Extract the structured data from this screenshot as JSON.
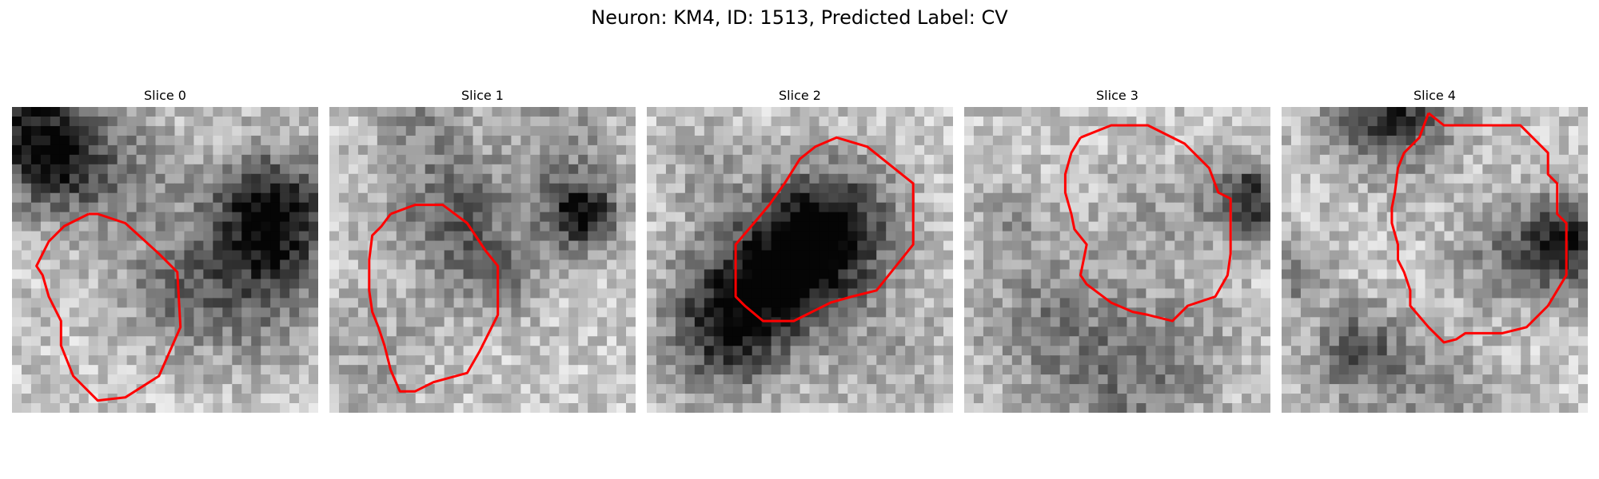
{
  "figure": {
    "title": "Neuron: KM4, ID: 1513, Predicted Label: CV"
  },
  "colors": {
    "contour": "#ff0000",
    "background": "#ffffff"
  },
  "panels": [
    {
      "title": "Slice 0",
      "seed": 11,
      "dark_blobs": [
        [
          0.05,
          0.05,
          0.25,
          0.9
        ],
        [
          0.85,
          0.35,
          0.2,
          1.0
        ],
        [
          0.75,
          0.6,
          0.25,
          0.5
        ],
        [
          0.35,
          0.25,
          0.2,
          0.35
        ],
        [
          0.5,
          0.6,
          0.15,
          0.3
        ],
        [
          0.15,
          0.2,
          0.12,
          0.4
        ]
      ],
      "contour": [
        [
          0.25,
          0.35
        ],
        [
          0.28,
          0.35
        ],
        [
          0.37,
          0.38
        ],
        [
          0.48,
          0.48
        ],
        [
          0.54,
          0.54
        ],
        [
          0.55,
          0.72
        ],
        [
          0.48,
          0.88
        ],
        [
          0.37,
          0.95
        ],
        [
          0.28,
          0.96
        ],
        [
          0.2,
          0.88
        ],
        [
          0.16,
          0.78
        ],
        [
          0.16,
          0.7
        ],
        [
          0.12,
          0.62
        ],
        [
          0.1,
          0.55
        ],
        [
          0.08,
          0.52
        ],
        [
          0.1,
          0.48
        ],
        [
          0.12,
          0.44
        ],
        [
          0.17,
          0.39
        ]
      ]
    },
    {
      "title": "Slice 1",
      "seed": 23,
      "dark_blobs": [
        [
          0.82,
          0.35,
          0.12,
          1.0
        ],
        [
          0.4,
          0.35,
          0.2,
          0.55
        ],
        [
          0.55,
          0.55,
          0.15,
          0.4
        ],
        [
          0.3,
          0.05,
          0.15,
          0.3
        ],
        [
          0.15,
          0.8,
          0.2,
          0.2
        ],
        [
          0.75,
          0.1,
          0.2,
          0.3
        ]
      ],
      "contour": [
        [
          0.2,
          0.35
        ],
        [
          0.28,
          0.32
        ],
        [
          0.37,
          0.32
        ],
        [
          0.45,
          0.38
        ],
        [
          0.51,
          0.47
        ],
        [
          0.55,
          0.52
        ],
        [
          0.55,
          0.68
        ],
        [
          0.49,
          0.8
        ],
        [
          0.45,
          0.87
        ],
        [
          0.34,
          0.9
        ],
        [
          0.28,
          0.93
        ],
        [
          0.23,
          0.93
        ],
        [
          0.2,
          0.86
        ],
        [
          0.18,
          0.78
        ],
        [
          0.16,
          0.72
        ],
        [
          0.14,
          0.67
        ],
        [
          0.13,
          0.6
        ],
        [
          0.13,
          0.5
        ],
        [
          0.14,
          0.42
        ],
        [
          0.17,
          0.39
        ]
      ]
    },
    {
      "title": "Slice 2",
      "seed": 37,
      "dark_blobs": [
        [
          0.55,
          0.45,
          0.2,
          1.0
        ],
        [
          0.35,
          0.6,
          0.22,
          0.8
        ],
        [
          0.25,
          0.75,
          0.2,
          0.6
        ],
        [
          0.65,
          0.35,
          0.2,
          0.4
        ],
        [
          0.2,
          0.2,
          0.15,
          0.2
        ],
        [
          0.8,
          0.8,
          0.2,
          0.2
        ]
      ],
      "contour": [
        [
          0.45,
          0.25
        ],
        [
          0.5,
          0.17
        ],
        [
          0.55,
          0.13
        ],
        [
          0.62,
          0.1
        ],
        [
          0.72,
          0.13
        ],
        [
          0.87,
          0.25
        ],
        [
          0.87,
          0.45
        ],
        [
          0.83,
          0.5
        ],
        [
          0.75,
          0.6
        ],
        [
          0.67,
          0.62
        ],
        [
          0.6,
          0.64
        ],
        [
          0.52,
          0.68
        ],
        [
          0.48,
          0.7
        ],
        [
          0.38,
          0.7
        ],
        [
          0.32,
          0.65
        ],
        [
          0.29,
          0.62
        ],
        [
          0.29,
          0.45
        ],
        [
          0.35,
          0.38
        ],
        [
          0.4,
          0.32
        ]
      ]
    },
    {
      "title": "Slice 3",
      "seed": 53,
      "dark_blobs": [
        [
          0.93,
          0.3,
          0.12,
          0.9
        ],
        [
          0.3,
          0.7,
          0.25,
          0.4
        ],
        [
          0.7,
          0.8,
          0.2,
          0.3
        ],
        [
          0.15,
          0.35,
          0.12,
          0.25
        ],
        [
          0.65,
          0.35,
          0.2,
          0.2
        ],
        [
          0.5,
          0.95,
          0.2,
          0.3
        ]
      ],
      "contour": [
        [
          0.38,
          0.1
        ],
        [
          0.48,
          0.06
        ],
        [
          0.6,
          0.06
        ],
        [
          0.72,
          0.12
        ],
        [
          0.8,
          0.2
        ],
        [
          0.83,
          0.28
        ],
        [
          0.87,
          0.3
        ],
        [
          0.87,
          0.48
        ],
        [
          0.86,
          0.55
        ],
        [
          0.82,
          0.62
        ],
        [
          0.73,
          0.65
        ],
        [
          0.68,
          0.7
        ],
        [
          0.6,
          0.68
        ],
        [
          0.55,
          0.67
        ],
        [
          0.48,
          0.64
        ],
        [
          0.4,
          0.58
        ],
        [
          0.38,
          0.55
        ],
        [
          0.4,
          0.45
        ],
        [
          0.36,
          0.4
        ],
        [
          0.35,
          0.35
        ],
        [
          0.33,
          0.28
        ],
        [
          0.33,
          0.22
        ],
        [
          0.35,
          0.15
        ]
      ]
    },
    {
      "title": "Slice 4",
      "seed": 71,
      "dark_blobs": [
        [
          0.35,
          0.0,
          0.2,
          0.9
        ],
        [
          0.93,
          0.45,
          0.15,
          1.0
        ],
        [
          0.25,
          0.8,
          0.15,
          0.6
        ],
        [
          0.7,
          0.5,
          0.15,
          0.35
        ],
        [
          0.05,
          0.55,
          0.1,
          0.45
        ],
        [
          0.5,
          0.95,
          0.2,
          0.3
        ]
      ],
      "contour": [
        [
          0.48,
          0.02
        ],
        [
          0.53,
          0.06
        ],
        [
          0.6,
          0.06
        ],
        [
          0.78,
          0.06
        ],
        [
          0.87,
          0.15
        ],
        [
          0.87,
          0.22
        ],
        [
          0.9,
          0.25
        ],
        [
          0.9,
          0.35
        ],
        [
          0.93,
          0.38
        ],
        [
          0.93,
          0.55
        ],
        [
          0.9,
          0.6
        ],
        [
          0.87,
          0.65
        ],
        [
          0.8,
          0.72
        ],
        [
          0.72,
          0.74
        ],
        [
          0.6,
          0.74
        ],
        [
          0.57,
          0.76
        ],
        [
          0.53,
          0.77
        ],
        [
          0.48,
          0.72
        ],
        [
          0.42,
          0.65
        ],
        [
          0.42,
          0.6
        ],
        [
          0.4,
          0.54
        ],
        [
          0.38,
          0.5
        ],
        [
          0.38,
          0.45
        ],
        [
          0.36,
          0.38
        ],
        [
          0.36,
          0.33
        ],
        [
          0.37,
          0.28
        ],
        [
          0.38,
          0.2
        ],
        [
          0.4,
          0.15
        ],
        [
          0.45,
          0.1
        ]
      ]
    }
  ]
}
